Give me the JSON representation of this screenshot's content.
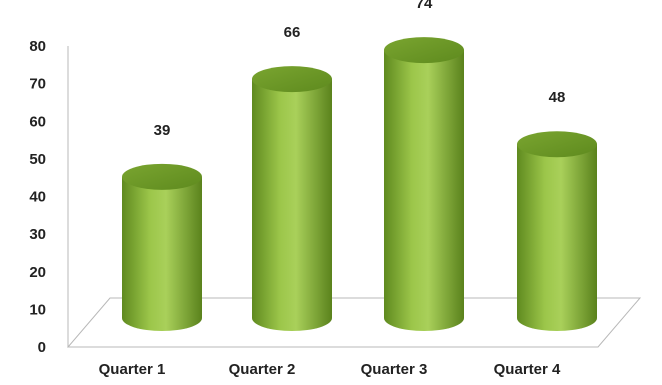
{
  "chart_data": {
    "type": "bar",
    "style": "3d-cylinder",
    "categories": [
      "Quarter 1",
      "Quarter 2",
      "Quarter 3",
      "Quarter 4"
    ],
    "values": [
      39,
      66,
      74,
      48
    ],
    "data_labels": [
      "39",
      "66",
      "74",
      "48"
    ],
    "title": "",
    "xlabel": "",
    "ylabel": "",
    "ylim": [
      0,
      80
    ],
    "yticks": [
      "0",
      "10",
      "20",
      "30",
      "40",
      "50",
      "60",
      "70",
      "80"
    ],
    "grid": false,
    "legend": "none",
    "colors": {
      "bar_light": "#a7cc55",
      "bar_mid": "#84b032",
      "bar_dark": "#54781a",
      "bar_top": "#6e9a28",
      "axis": "#b8b8b8"
    }
  }
}
